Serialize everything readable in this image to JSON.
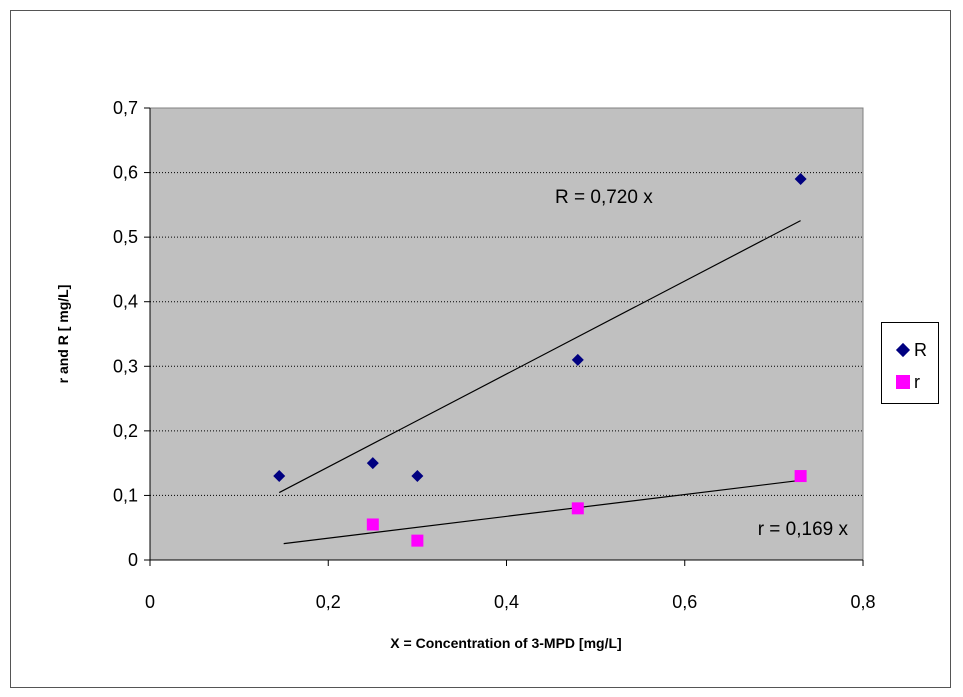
{
  "chart_data": {
    "type": "scatter",
    "title": "",
    "xlabel": "X = Concentration of 3-MPD [mg/L]",
    "ylabel": "r and R [ mg/L]",
    "xlim": [
      0,
      0.8
    ],
    "ylim": [
      0,
      0.7
    ],
    "x_ticks": [
      "0",
      "0,2",
      "0,4",
      "0,6",
      "0,8"
    ],
    "y_ticks": [
      "0",
      "0,1",
      "0,2",
      "0,3",
      "0,4",
      "0,5",
      "0,6",
      "0,7"
    ],
    "grid": "horizontal-dotted",
    "plot_background": "#c0c0c0",
    "legend_position": "right",
    "series": [
      {
        "name": "R",
        "marker": "diamond",
        "color": "#000080",
        "points": [
          [
            0.145,
            0.13
          ],
          [
            0.25,
            0.15
          ],
          [
            0.3,
            0.13
          ],
          [
            0.48,
            0.31
          ],
          [
            0.73,
            0.59
          ]
        ],
        "trendline": {
          "slope": 0.72,
          "x_range": [
            0.145,
            0.73
          ],
          "label": "R = 0,720  x"
        }
      },
      {
        "name": "r",
        "marker": "square",
        "color": "#ff00ff",
        "points": [
          [
            0.25,
            0.055
          ],
          [
            0.3,
            0.03
          ],
          [
            0.48,
            0.08
          ],
          [
            0.73,
            0.13
          ]
        ],
        "trendline": {
          "slope": 0.169,
          "x_range": [
            0.15,
            0.73
          ],
          "label": "r = 0,169  x"
        }
      }
    ]
  }
}
